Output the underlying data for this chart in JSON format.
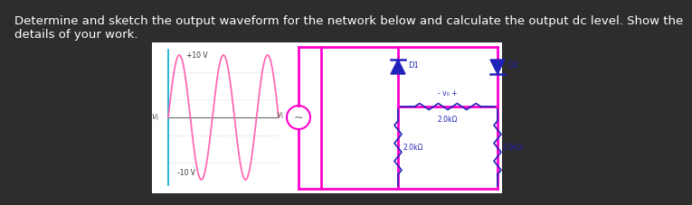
{
  "bg_color": "#2d2d2d",
  "panel_bg": "#ffffff",
  "text_color": "#ffffff",
  "title_line1": "Determine and sketch the output waveform for the network below and calculate the output dc level. Show the",
  "title_line2": "details of your work.",
  "title_fontsize": 9.5,
  "pink": "#ff69b4",
  "magenta": "#ff00cc",
  "blue": "#2222bb",
  "cyan": "#00aacc",
  "sine_label_plus": "+10 V",
  "sine_label_minus": "-10 V",
  "vi_label": "v_i",
  "D1_label": "D1",
  "D2_label": "D2",
  "R_top_label": "2.0kΩ",
  "R_left_label": "2.0kΩ",
  "R_right_label": "2.0kΩ",
  "vo_label": "- v₀ +",
  "grid_color": "#cccccc"
}
